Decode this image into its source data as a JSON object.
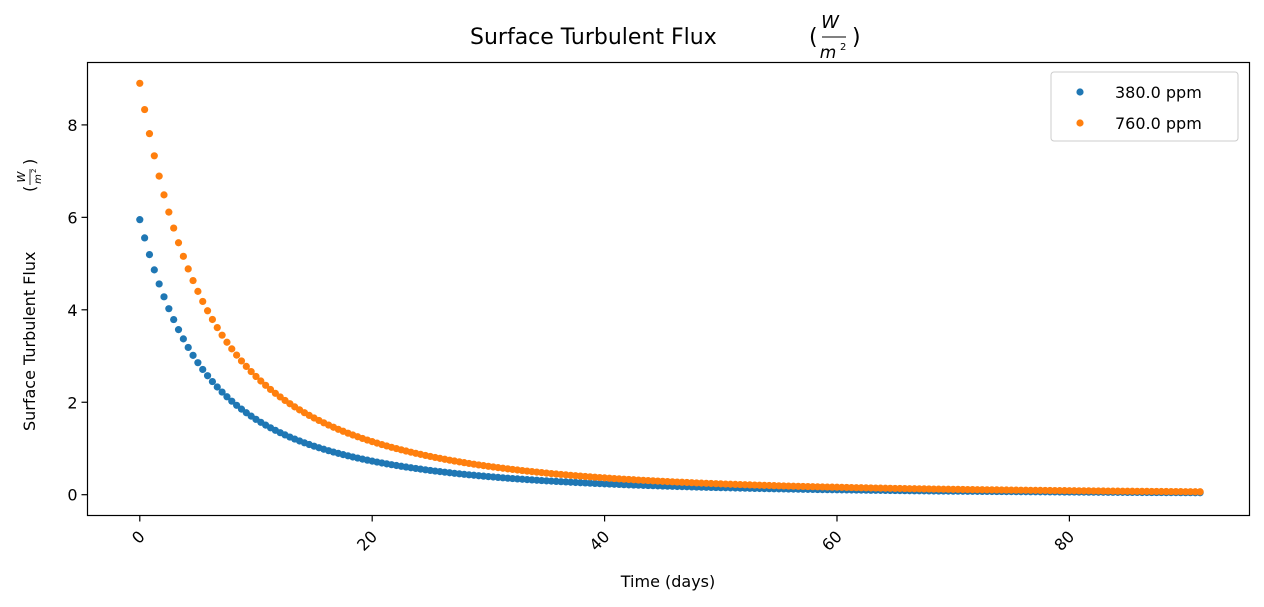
{
  "chart_data": {
    "type": "scatter",
    "title": "Surface Turbulent Flux",
    "title_unit_num": "W",
    "title_unit_den": "m",
    "title_unit_den_sup": "2",
    "xlabel": "Time (days)",
    "ylabel": "Surface Turbulent Flux",
    "ylabel_unit_num": "W",
    "ylabel_unit_den": "m",
    "ylabel_unit_den_sup": "2",
    "xlim": [
      -4.5,
      95.5
    ],
    "ylim": [
      -0.45,
      9.35
    ],
    "xticks": [
      0,
      20,
      40,
      60,
      80
    ],
    "xtick_labels": [
      "0",
      "20",
      "40",
      "60",
      "80"
    ],
    "yticks": [
      0,
      2,
      4,
      6,
      8
    ],
    "ytick_labels": [
      "0",
      "2",
      "4",
      "6",
      "8"
    ],
    "grid": false,
    "legend_position": "top-right",
    "x_tick_rotation_deg": 45,
    "x_start": 0,
    "x_end": 91.25,
    "point_count": 220,
    "series": [
      {
        "name": "380.0 ppm",
        "color": "#1f77b4",
        "model": "sum-of-exponentials",
        "start_value": 5.95,
        "components": [
          {
            "amplitude": 3.1,
            "decay_days": 4.0
          },
          {
            "amplitude": 2.45,
            "decay_days": 12.0
          },
          {
            "amplitude": 0.4,
            "decay_days": 40.0
          }
        ]
      },
      {
        "name": "760.0 ppm",
        "color": "#ff7f0e",
        "model": "sum-of-exponentials",
        "start_value": 8.9,
        "components": [
          {
            "amplitude": 4.3,
            "decay_days": 4.0
          },
          {
            "amplitude": 4.0,
            "decay_days": 12.0
          },
          {
            "amplitude": 0.6,
            "decay_days": 40.0
          }
        ]
      }
    ]
  }
}
